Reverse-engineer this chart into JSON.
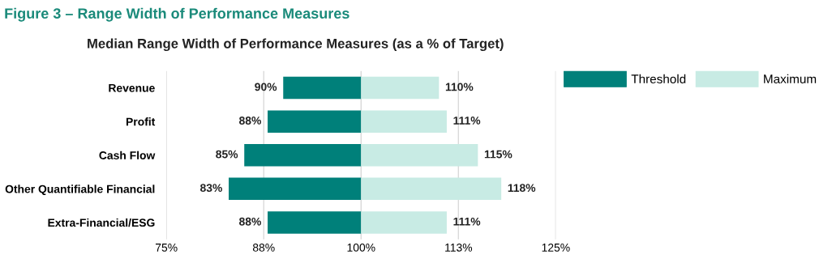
{
  "chart_data": {
    "type": "bar",
    "orientation": "horizontal",
    "title": "Figure 3 – Range Width of Performance Measures",
    "subtitle": "Median Range Width of Performance Measures (as a % of Target)",
    "categories": [
      "Revenue",
      "Profit",
      "Cash Flow",
      "Other Quantifiable Financial",
      "Extra-Financial/ESG"
    ],
    "series": [
      {
        "name": "Threshold",
        "color": "#00807a",
        "base": [
          100,
          100,
          100,
          100,
          100
        ],
        "values": [
          -10,
          -12,
          -15,
          -17,
          -12
        ],
        "value_labels": [
          "90%",
          "88%",
          "85%",
          "83%",
          "88%"
        ]
      },
      {
        "name": "Maximum",
        "color": "#c8ebe4",
        "base": [
          100,
          100,
          100,
          100,
          100
        ],
        "values": [
          10,
          11,
          15,
          18,
          11
        ],
        "value_labels": [
          "110%",
          "111%",
          "115%",
          "118%",
          "111%"
        ]
      }
    ],
    "xlim": [
      75,
      125
    ],
    "xticks": [
      {
        "value": 75,
        "label": "75%"
      },
      {
        "value": 87.5,
        "label": "88%"
      },
      {
        "value": 100,
        "label": "100%"
      },
      {
        "value": 112.5,
        "label": "113%"
      },
      {
        "value": 125,
        "label": "125%"
      }
    ],
    "grid": "x",
    "legend": "top right"
  }
}
